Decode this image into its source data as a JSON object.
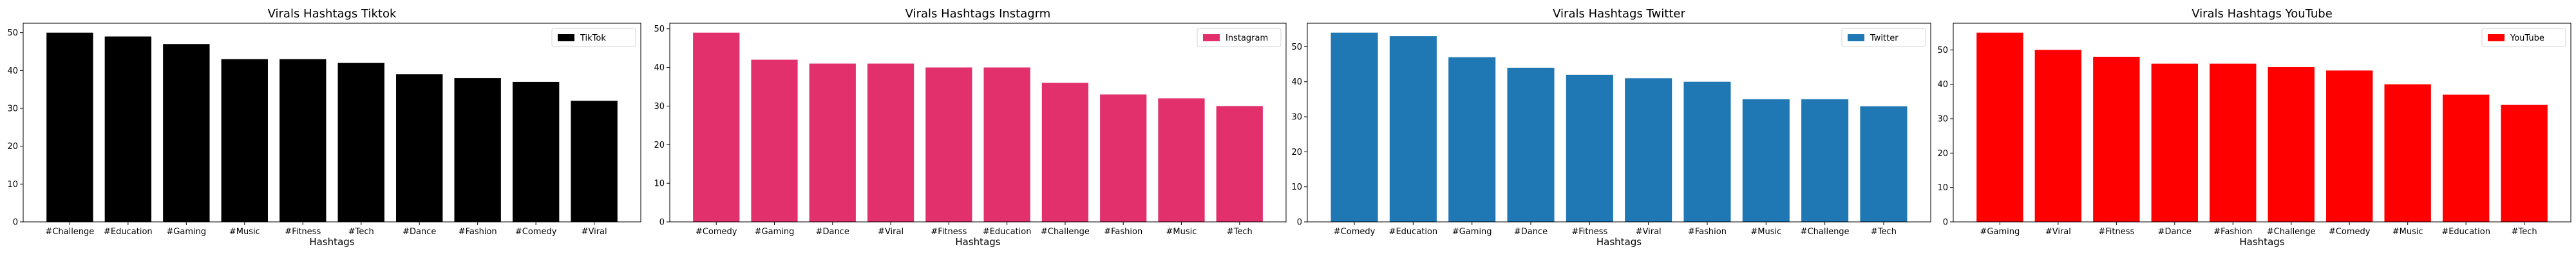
{
  "chart_data": [
    {
      "type": "bar",
      "title": "Virals Hashtags Tiktok",
      "xlabel": "Hashtags",
      "ylabel": "",
      "categories": [
        "#Challenge",
        "#Education",
        "#Gaming",
        "#Music",
        "#Fitness",
        "#Tech",
        "#Dance",
        "#Fashion",
        "#Comedy",
        "#Viral"
      ],
      "series": [
        {
          "name": "TikTok",
          "values": [
            50,
            49,
            47,
            43,
            43,
            42,
            39,
            38,
            37,
            32
          ],
          "color": "#000000"
        }
      ],
      "ylim": [
        0,
        52.5
      ],
      "yticks": [
        0,
        10,
        20,
        30,
        40,
        50
      ],
      "legend": "top-right",
      "grid": false
    },
    {
      "type": "bar",
      "title": "Virals Hashtags Instagrm",
      "xlabel": "Hashtags",
      "ylabel": "",
      "categories": [
        "#Comedy",
        "#Gaming",
        "#Dance",
        "#Viral",
        "#Fitness",
        "#Education",
        "#Challenge",
        "#Fashion",
        "#Music",
        "#Tech"
      ],
      "series": [
        {
          "name": "Instagram",
          "values": [
            49,
            42,
            41,
            41,
            40,
            40,
            36,
            33,
            32,
            30
          ],
          "color": "#E1306C"
        }
      ],
      "ylim": [
        0,
        51.45
      ],
      "yticks": [
        0,
        10,
        20,
        30,
        40,
        50
      ],
      "legend": "top-right",
      "grid": false
    },
    {
      "type": "bar",
      "title": "Virals Hashtags Twitter",
      "xlabel": "Hashtags",
      "ylabel": "",
      "categories": [
        "#Comedy",
        "#Education",
        "#Gaming",
        "#Dance",
        "#Fitness",
        "#Viral",
        "#Fashion",
        "#Music",
        "#Challenge",
        "#Tech"
      ],
      "series": [
        {
          "name": "Twitter",
          "values": [
            54,
            53,
            47,
            44,
            42,
            41,
            40,
            35,
            35,
            33
          ],
          "color": "#1F77B4"
        }
      ],
      "ylim": [
        0,
        56.7
      ],
      "yticks": [
        0,
        10,
        20,
        30,
        40,
        50
      ],
      "legend": "top-right",
      "grid": false
    },
    {
      "type": "bar",
      "title": "Virals Hashtags YouTube",
      "xlabel": "Hashtags",
      "ylabel": "",
      "categories": [
        "#Gaming",
        "#Viral",
        "#Fitness",
        "#Dance",
        "#Fashion",
        "#Challenge",
        "#Comedy",
        "#Music",
        "#Education",
        "#Tech"
      ],
      "series": [
        {
          "name": "YouTube",
          "values": [
            55,
            50,
            48,
            46,
            46,
            45,
            44,
            40,
            37,
            34
          ],
          "color": "#FF0000"
        }
      ],
      "ylim": [
        0,
        57.75
      ],
      "yticks": [
        0,
        10,
        20,
        30,
        40,
        50
      ],
      "legend": "top-right",
      "grid": false
    }
  ]
}
